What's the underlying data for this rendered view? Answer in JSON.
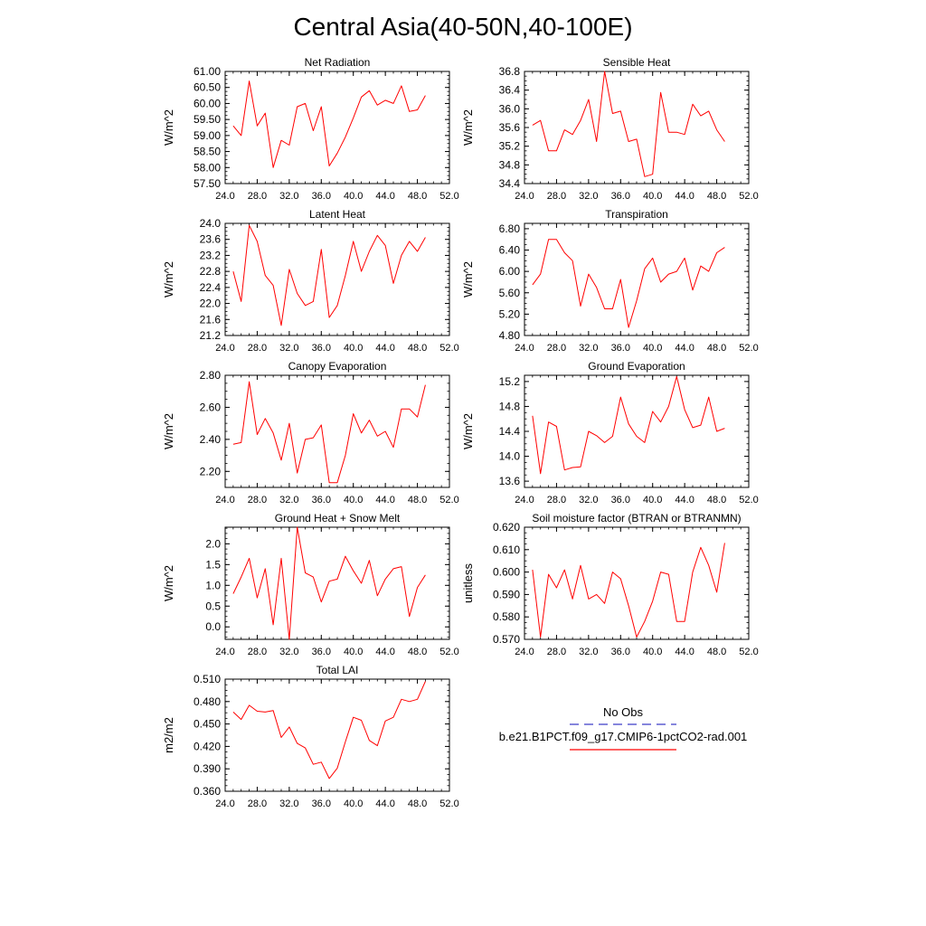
{
  "title": "Central Asia(40-50N,40-100E)",
  "legend": {
    "obs_label": "No Obs",
    "model_label": "b.e21.B1PCT.f09_g17.CMIP6-1pctCO2-rad.001",
    "obs_color": "#3c3cc8",
    "model_color": "#ff0000"
  },
  "chart_data": [
    {
      "type": "line",
      "title": "Net Radiation",
      "ylabel": "W/m^2",
      "xlim": [
        24,
        52
      ],
      "ylim": [
        57.5,
        61.0
      ],
      "xticks": [
        "24.0",
        "28.0",
        "32.0",
        "36.0",
        "40.0",
        "44.0",
        "48.0",
        "52.0"
      ],
      "yticks": [
        "57.50",
        "58.00",
        "58.50",
        "59.00",
        "59.50",
        "60.00",
        "60.50",
        "61.00"
      ],
      "series": [
        {
          "x": [
            25,
            26,
            27,
            28,
            29,
            30,
            31,
            32,
            33,
            34,
            35,
            36,
            37,
            38,
            39,
            40,
            41,
            42,
            43,
            44,
            45,
            46,
            47,
            48,
            49
          ],
          "values": [
            59.3,
            59.0,
            60.7,
            59.3,
            59.7,
            58.0,
            58.85,
            58.7,
            59.9,
            60.0,
            59.15,
            59.9,
            58.05,
            58.45,
            58.95,
            59.55,
            60.2,
            60.4,
            59.95,
            60.1,
            60.0,
            60.55,
            59.75,
            59.8,
            60.25
          ]
        }
      ]
    },
    {
      "type": "line",
      "title": "Sensible Heat",
      "ylabel": "W/m^2",
      "xlim": [
        24,
        52
      ],
      "ylim": [
        34.4,
        36.8
      ],
      "xticks": [
        "24.0",
        "28.0",
        "32.0",
        "36.0",
        "40.0",
        "44.0",
        "48.0",
        "52.0"
      ],
      "yticks": [
        "34.4",
        "34.8",
        "35.2",
        "35.6",
        "36.0",
        "36.4",
        "36.8"
      ],
      "series": [
        {
          "x": [
            25,
            26,
            27,
            28,
            29,
            30,
            31,
            32,
            33,
            34,
            35,
            36,
            37,
            38,
            39,
            40,
            41,
            42,
            43,
            44,
            45,
            46,
            47,
            48,
            49
          ],
          "values": [
            35.65,
            35.75,
            35.1,
            35.1,
            35.55,
            35.45,
            35.75,
            36.2,
            35.3,
            36.8,
            35.9,
            35.95,
            35.3,
            35.35,
            34.55,
            34.6,
            36.35,
            35.5,
            35.5,
            35.45,
            36.1,
            35.85,
            35.95,
            35.55,
            35.3
          ]
        }
      ]
    },
    {
      "type": "line",
      "title": "Latent Heat",
      "ylabel": "W/m^2",
      "xlim": [
        24,
        52
      ],
      "ylim": [
        21.2,
        24.0
      ],
      "xticks": [
        "24.0",
        "28.0",
        "32.0",
        "36.0",
        "40.0",
        "44.0",
        "48.0",
        "52.0"
      ],
      "yticks": [
        "21.2",
        "21.6",
        "22.0",
        "22.4",
        "22.8",
        "23.2",
        "23.6",
        "24.0"
      ],
      "series": [
        {
          "x": [
            25,
            26,
            27,
            28,
            29,
            30,
            31,
            32,
            33,
            34,
            35,
            36,
            37,
            38,
            39,
            40,
            41,
            42,
            43,
            44,
            45,
            46,
            47,
            48,
            49
          ],
          "values": [
            22.8,
            22.05,
            23.95,
            23.55,
            22.7,
            22.45,
            21.45,
            22.85,
            22.25,
            21.95,
            22.05,
            23.35,
            21.65,
            21.95,
            22.7,
            23.55,
            22.8,
            23.3,
            23.7,
            23.45,
            22.5,
            23.2,
            23.55,
            23.3,
            23.65
          ]
        }
      ]
    },
    {
      "type": "line",
      "title": "Transpiration",
      "ylabel": "W/m^2",
      "xlim": [
        24,
        52
      ],
      "ylim": [
        4.8,
        6.9
      ],
      "xticks": [
        "24.0",
        "28.0",
        "32.0",
        "36.0",
        "40.0",
        "44.0",
        "48.0",
        "52.0"
      ],
      "yticks": [
        "4.80",
        "5.20",
        "5.60",
        "6.00",
        "6.40",
        "6.80"
      ],
      "series": [
        {
          "x": [
            25,
            26,
            27,
            28,
            29,
            30,
            31,
            32,
            33,
            34,
            35,
            36,
            37,
            38,
            39,
            40,
            41,
            42,
            43,
            44,
            45,
            46,
            47,
            48,
            49
          ],
          "values": [
            5.75,
            5.95,
            6.6,
            6.6,
            6.35,
            6.2,
            5.35,
            5.95,
            5.7,
            5.3,
            5.3,
            5.85,
            4.95,
            5.45,
            6.05,
            6.25,
            5.8,
            5.95,
            6.0,
            6.25,
            5.65,
            6.1,
            6.0,
            6.35,
            6.45
          ]
        }
      ]
    },
    {
      "type": "line",
      "title": "Canopy Evaporation",
      "ylabel": "W/m^2",
      "xlim": [
        24,
        52
      ],
      "ylim": [
        2.1,
        2.8
      ],
      "xticks": [
        "24.0",
        "28.0",
        "32.0",
        "36.0",
        "40.0",
        "44.0",
        "48.0",
        "52.0"
      ],
      "yticks": [
        "2.20",
        "2.40",
        "2.60",
        "2.80"
      ],
      "series": [
        {
          "x": [
            25,
            26,
            27,
            28,
            29,
            30,
            31,
            32,
            33,
            34,
            35,
            36,
            37,
            38,
            39,
            40,
            41,
            42,
            43,
            44,
            45,
            46,
            47,
            48,
            49
          ],
          "values": [
            2.37,
            2.38,
            2.76,
            2.43,
            2.53,
            2.44,
            2.27,
            2.5,
            2.19,
            2.4,
            2.41,
            2.49,
            2.13,
            2.13,
            2.3,
            2.56,
            2.44,
            2.52,
            2.42,
            2.45,
            2.35,
            2.59,
            2.59,
            2.54,
            2.74
          ]
        }
      ]
    },
    {
      "type": "line",
      "title": "Ground Evaporation",
      "ylabel": "W/m^2",
      "xlim": [
        24,
        52
      ],
      "ylim": [
        13.5,
        15.3
      ],
      "xticks": [
        "24.0",
        "28.0",
        "32.0",
        "36.0",
        "40.0",
        "44.0",
        "48.0",
        "52.0"
      ],
      "yticks": [
        "13.6",
        "14.0",
        "14.4",
        "14.8",
        "15.2"
      ],
      "series": [
        {
          "x": [
            25,
            26,
            27,
            28,
            29,
            30,
            31,
            32,
            33,
            34,
            35,
            36,
            37,
            38,
            39,
            40,
            41,
            42,
            43,
            44,
            45,
            46,
            47,
            48,
            49
          ],
          "values": [
            14.65,
            13.72,
            14.55,
            14.48,
            13.78,
            13.82,
            13.83,
            14.4,
            14.33,
            14.22,
            14.32,
            14.95,
            14.52,
            14.32,
            14.22,
            14.72,
            14.55,
            14.8,
            15.28,
            14.75,
            14.46,
            14.5,
            14.95,
            14.4,
            14.45
          ]
        }
      ]
    },
    {
      "type": "line",
      "title": "Ground Heat + Snow Melt",
      "ylabel": "W/m^2",
      "xlim": [
        24,
        52
      ],
      "ylim": [
        -0.3,
        2.4
      ],
      "xticks": [
        "24.0",
        "28.0",
        "32.0",
        "36.0",
        "40.0",
        "44.0",
        "48.0",
        "52.0"
      ],
      "yticks": [
        "0.0",
        "0.5",
        "1.0",
        "1.5",
        "2.0"
      ],
      "series": [
        {
          "x": [
            25,
            26,
            27,
            28,
            29,
            30,
            31,
            32,
            33,
            34,
            35,
            36,
            37,
            38,
            39,
            40,
            41,
            42,
            43,
            44,
            45,
            46,
            47,
            48,
            49
          ],
          "values": [
            0.8,
            1.2,
            1.65,
            0.7,
            1.4,
            0.05,
            1.65,
            -0.3,
            2.4,
            1.3,
            1.2,
            0.6,
            1.1,
            1.15,
            1.7,
            1.35,
            1.05,
            1.6,
            0.75,
            1.15,
            1.4,
            1.45,
            0.25,
            0.95,
            1.25
          ]
        }
      ]
    },
    {
      "type": "line",
      "title": "Soil moisture factor (BTRAN or BTRANMN)",
      "ylabel": "unitless",
      "xlim": [
        24,
        52
      ],
      "ylim": [
        0.57,
        0.62
      ],
      "xticks": [
        "24.0",
        "28.0",
        "32.0",
        "36.0",
        "40.0",
        "44.0",
        "48.0",
        "52.0"
      ],
      "yticks": [
        "0.570",
        "0.580",
        "0.590",
        "0.600",
        "0.610",
        "0.620"
      ],
      "series": [
        {
          "x": [
            25,
            26,
            27,
            28,
            29,
            30,
            31,
            32,
            33,
            34,
            35,
            36,
            37,
            38,
            39,
            40,
            41,
            42,
            43,
            44,
            45,
            46,
            47,
            48,
            49
          ],
          "values": [
            0.601,
            0.571,
            0.599,
            0.593,
            0.601,
            0.588,
            0.603,
            0.588,
            0.59,
            0.586,
            0.6,
            0.597,
            0.585,
            0.571,
            0.578,
            0.587,
            0.6,
            0.599,
            0.578,
            0.578,
            0.6,
            0.611,
            0.603,
            0.591,
            0.613
          ]
        }
      ]
    },
    {
      "type": "line",
      "title": "Total LAI",
      "ylabel": "m2/m2",
      "xlim": [
        24,
        52
      ],
      "ylim": [
        0.36,
        0.51
      ],
      "xticks": [
        "24.0",
        "28.0",
        "32.0",
        "36.0",
        "40.0",
        "44.0",
        "48.0",
        "52.0"
      ],
      "yticks": [
        "0.360",
        "0.390",
        "0.420",
        "0.450",
        "0.480",
        "0.510"
      ],
      "series": [
        {
          "x": [
            25,
            26,
            27,
            28,
            29,
            30,
            31,
            32,
            33,
            34,
            35,
            36,
            37,
            38,
            39,
            40,
            41,
            42,
            43,
            44,
            45,
            46,
            47,
            48,
            49
          ],
          "values": [
            0.466,
            0.456,
            0.475,
            0.467,
            0.466,
            0.468,
            0.432,
            0.446,
            0.424,
            0.418,
            0.396,
            0.399,
            0.377,
            0.391,
            0.426,
            0.459,
            0.455,
            0.428,
            0.421,
            0.454,
            0.459,
            0.483,
            0.48,
            0.483,
            0.507
          ]
        }
      ]
    }
  ]
}
